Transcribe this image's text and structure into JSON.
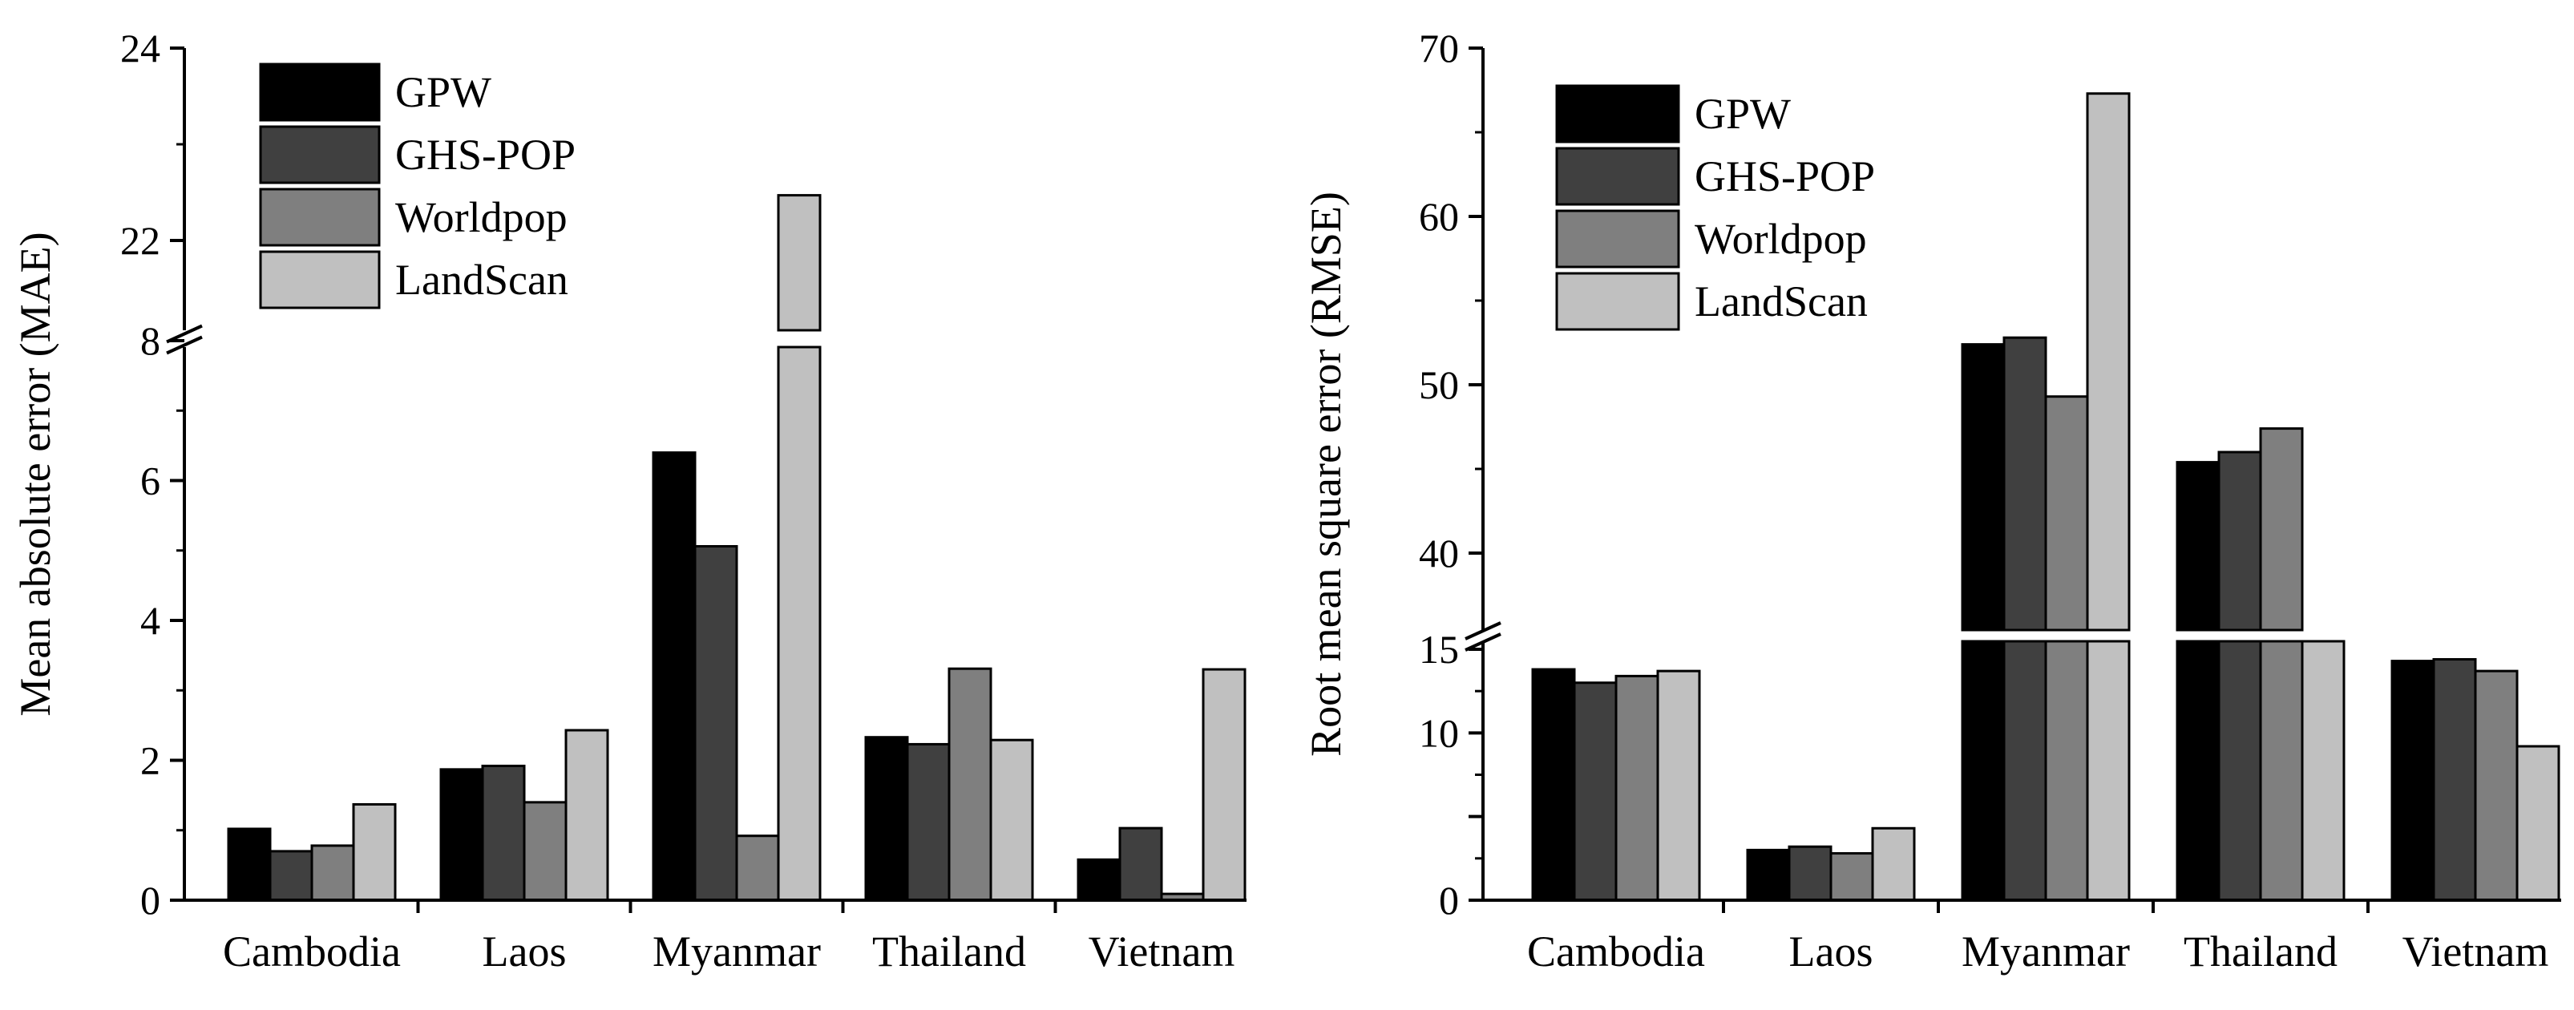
{
  "chart_data": [
    {
      "type": "bar",
      "ylabel": "Mean absolute error (MAE)",
      "categories": [
        "Cambodia",
        "Laos",
        "Myanmar",
        "Thailand",
        "Vietnam"
      ],
      "series": [
        {
          "name": "GPW",
          "values": [
            1.02,
            1.87,
            6.4,
            2.33,
            0.58
          ]
        },
        {
          "name": "GHS-POP",
          "values": [
            0.7,
            1.92,
            5.06,
            2.23,
            1.03
          ]
        },
        {
          "name": "Worldpop",
          "values": [
            0.78,
            1.4,
            0.92,
            3.31,
            0.09
          ]
        },
        {
          "name": "LandScan",
          "values": [
            1.37,
            2.43,
            22.47,
            2.29,
            3.3
          ]
        }
      ],
      "axis_break": {
        "lower_range": [
          0,
          8
        ],
        "upper_range": [
          21,
          24
        ]
      },
      "yticks_lower": [
        0,
        2,
        4,
        6,
        8
      ],
      "yticks_upper": [
        22,
        24
      ],
      "legend": "top-left"
    },
    {
      "type": "bar",
      "ylabel": "Root mean square error (RMSE)",
      "categories": [
        "Cambodia",
        "Laos",
        "Myanmar",
        "Thailand",
        "Vietnam"
      ],
      "series": [
        {
          "name": "GPW",
          "values": [
            13.8,
            3.0,
            52.4,
            45.4,
            14.3
          ]
        },
        {
          "name": "GHS-POP",
          "values": [
            13.0,
            3.2,
            52.8,
            46.0,
            14.4
          ]
        },
        {
          "name": "Worldpop",
          "values": [
            13.4,
            2.8,
            49.3,
            47.4,
            13.7
          ]
        },
        {
          "name": "LandScan",
          "values": [
            13.7,
            4.3,
            67.3,
            35.3,
            9.2
          ]
        }
      ],
      "axis_break": {
        "lower_range": [
          0,
          15
        ],
        "upper_range": [
          35,
          70
        ]
      },
      "yticks_lower": [
        0,
        5,
        10,
        15
      ],
      "ytick_labels_lower": [
        "0",
        "",
        "10",
        "15"
      ],
      "yticks_upper": [
        40,
        50,
        60,
        70
      ],
      "legend": "top-left"
    }
  ],
  "colors": {
    "GPW": "#000000",
    "GHS-POP": "#404040",
    "Worldpop": "#7f7f7f",
    "LandScan": "#c0c0c0"
  }
}
